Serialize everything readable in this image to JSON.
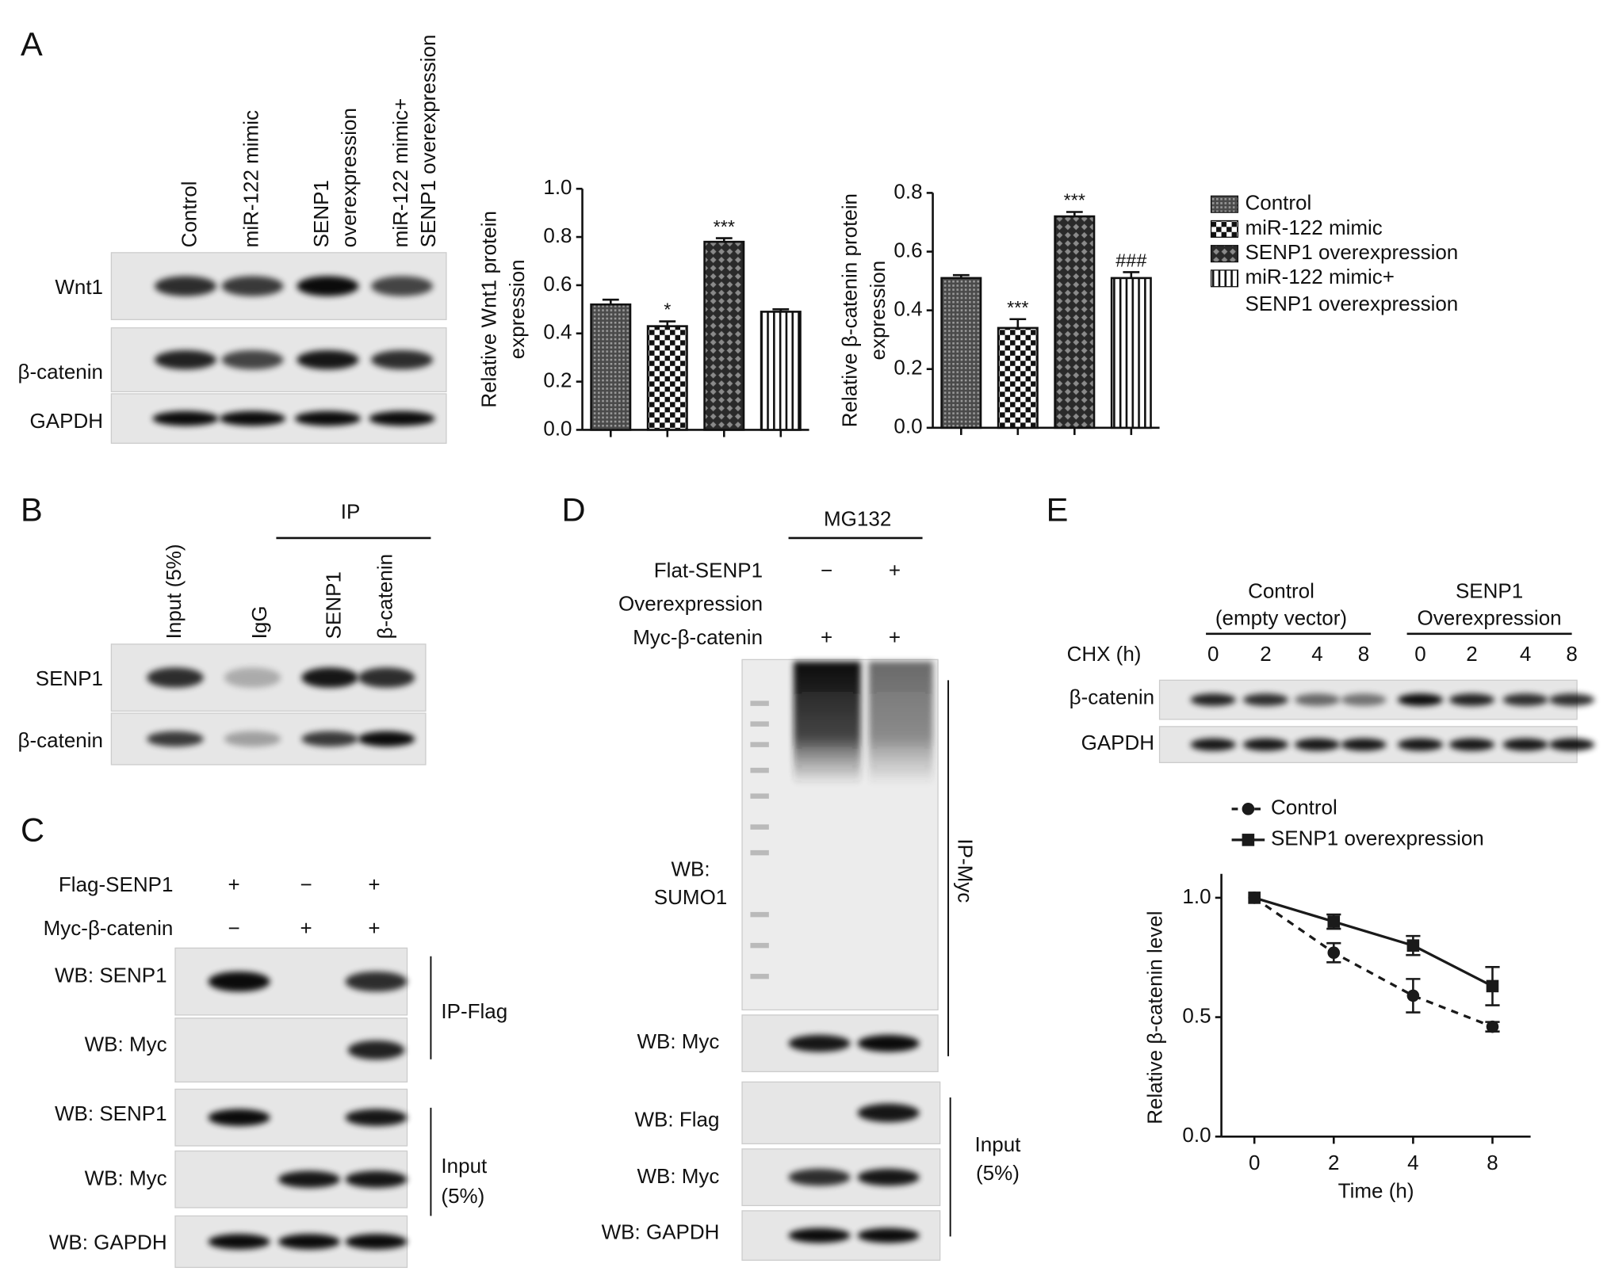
{
  "panel_labels": [
    "A",
    "B",
    "C",
    "D",
    "E"
  ],
  "panel_a": {
    "lanes": [
      [
        "Control"
      ],
      [
        "miR-122 mimic"
      ],
      [
        "SENP1",
        "overexpression"
      ],
      [
        "miR-122 mimic+",
        "SENP1 overexpression"
      ]
    ],
    "rows": [
      "Wnt1",
      "β-catenin",
      "GAPDH"
    ]
  },
  "bar_legend": {
    "entries": [
      [
        "Control"
      ],
      [
        "miR-122 mimic"
      ],
      [
        "SENP1 overexpression"
      ],
      [
        "miR-122 mimic+",
        "SENP1 overexpression"
      ]
    ],
    "patterns": [
      "dense",
      "checker",
      "diamond",
      "vstripe"
    ]
  },
  "panel_b": {
    "ip": "IP",
    "lanes": [
      "Input (5%)",
      "IgG",
      "SENP1",
      "β-catenin"
    ],
    "rows": [
      "SENP1",
      "β-catenin"
    ]
  },
  "panel_c": {
    "conditions": [
      {
        "name": "Flag-SENP1",
        "signs": [
          "+",
          "−",
          "+"
        ]
      },
      {
        "name": "Myc-β-catenin",
        "signs": [
          "−",
          "+",
          "+"
        ]
      }
    ],
    "rows": [
      "WB: SENP1",
      "WB: Myc",
      "WB: SENP1",
      "WB: Myc",
      "WB: GAPDH"
    ],
    "brackets": [
      [
        "IP-Flag"
      ],
      [
        "Input",
        "(5%)"
      ]
    ]
  },
  "panel_d": {
    "treatment": "MG132",
    "conditions": [
      {
        "name": [
          "Flat-SENP1",
          "Overexpression"
        ],
        "signs": [
          "−",
          "+"
        ]
      },
      {
        "name": [
          "Myc-β-catenin"
        ],
        "signs": [
          "+",
          "+"
        ]
      }
    ],
    "rows": [
      [
        "WB:",
        "SUMO1"
      ],
      [
        "WB: Myc"
      ],
      [
        "WB: Flag"
      ],
      [
        "WB: Myc"
      ],
      [
        "WB: GAPDH"
      ]
    ],
    "brackets": [
      [
        "IP-Myc"
      ],
      [
        "Input",
        "(5%)"
      ]
    ]
  },
  "panel_e": {
    "groups": [
      [
        "Control",
        "(empty vector)"
      ],
      [
        "SENP1",
        "Overexpression"
      ]
    ],
    "chx_label": "CHX (h)",
    "timepoints": [
      "0",
      "2",
      "4",
      "8",
      "0",
      "2",
      "4",
      "8"
    ],
    "rows": [
      "β-catenin",
      "GAPDH"
    ]
  },
  "chart_data": [
    {
      "type": "bar",
      "ylabel": [
        "Relative Wnt1 protein",
        "expression"
      ],
      "categories": [
        null,
        null,
        null,
        null
      ],
      "values": [
        0.52,
        0.43,
        0.78,
        0.49
      ],
      "errors": [
        0.02,
        0.02,
        0.015,
        0.01
      ],
      "significance": [
        null,
        "*",
        "***",
        null
      ],
      "ylim": [
        0,
        1.0
      ],
      "yticks": [
        {
          "value": 0,
          "label": "0.0"
        },
        {
          "value": 0.2,
          "label": "0.2"
        },
        {
          "value": 0.4,
          "label": "0.4"
        },
        {
          "value": 0.6,
          "label": "0.6"
        },
        {
          "value": 0.8,
          "label": "0.8"
        },
        {
          "value": 1.0,
          "label": "1.0"
        }
      ]
    },
    {
      "type": "bar",
      "ylabel": [
        "Relative β-catenin protein",
        "expression"
      ],
      "categories": [
        null,
        null,
        null,
        null
      ],
      "values": [
        0.51,
        0.34,
        0.72,
        0.51
      ],
      "errors": [
        0.01,
        0.03,
        0.015,
        0.02
      ],
      "significance": [
        null,
        "***",
        "***",
        "###"
      ],
      "ylim": [
        0,
        0.8
      ],
      "yticks": [
        {
          "value": 0,
          "label": "0.0"
        },
        {
          "value": 0.2,
          "label": "0.2"
        },
        {
          "value": 0.4,
          "label": "0.4"
        },
        {
          "value": 0.6,
          "label": "0.6"
        },
        {
          "value": 0.8,
          "label": "0.8"
        }
      ]
    },
    {
      "type": "line",
      "xlabel": "Time (h)",
      "ylabel": "Relative β-catenin level",
      "categories": [
        "0",
        "2",
        "4",
        "8"
      ],
      "ylim": [
        0,
        1.1
      ],
      "yticks": [
        {
          "value": 0,
          "label": "0.0"
        },
        {
          "value": 0.5,
          "label": "0.5"
        },
        {
          "value": 1,
          "label": "1.0"
        }
      ],
      "series": [
        {
          "name": "Control",
          "color": "#1a1a1a",
          "dashed": true,
          "marker": "circle",
          "values": [
            1,
            0.77,
            0.59,
            0.46
          ],
          "errors": [
            null,
            0.04,
            0.07,
            0.02
          ]
        },
        {
          "name": "SENP1 overexpression",
          "color": "#1a1a1a",
          "dashed": false,
          "marker": "square",
          "values": [
            1,
            0.9,
            0.8,
            0.63
          ],
          "errors": [
            null,
            0.03,
            0.04,
            0.08
          ]
        }
      ]
    }
  ]
}
